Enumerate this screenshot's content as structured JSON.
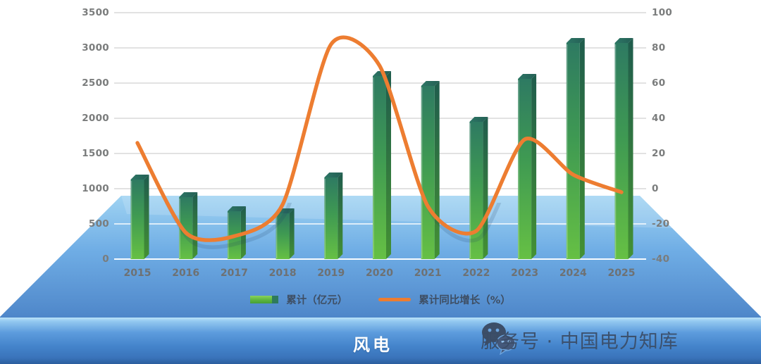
{
  "page": {
    "background": "#ffffff"
  },
  "footer": {
    "title": "风电",
    "brand_text": "服务号 · 中国电力知库",
    "brand_icon": "wechat-icon"
  },
  "legend": [
    {
      "type": "bar",
      "label": "累计（亿元）",
      "color": "#5cb53f"
    },
    {
      "type": "line",
      "label": "累计同比增长（%）",
      "color": "#ed7d31"
    }
  ],
  "chart_data": {
    "type": "combo",
    "title": "风电",
    "categories": [
      "2015",
      "2016",
      "2017",
      "2018",
      "2019",
      "2020",
      "2021",
      "2022",
      "2023",
      "2024",
      "2025"
    ],
    "series": [
      {
        "name": "累计（亿元）",
        "type": "bar",
        "axis": "left",
        "values": [
          1130,
          880,
          680,
          650,
          1160,
          2600,
          2460,
          1950,
          2560,
          3070,
          3070
        ]
      },
      {
        "name": "累计同比增长（%）",
        "type": "line",
        "axis": "right",
        "values": [
          26,
          -25,
          -27,
          -9,
          82,
          70,
          -10,
          -24,
          28,
          8,
          -2
        ]
      }
    ],
    "left_axis": {
      "min": 0,
      "max": 3500,
      "step": 500,
      "ticks": [
        0,
        500,
        1000,
        1500,
        2000,
        2500,
        3000,
        3500
      ]
    },
    "right_axis": {
      "min": -40,
      "max": 100,
      "step": 20,
      "ticks": [
        -40,
        -20,
        0,
        20,
        40,
        60,
        80,
        100
      ]
    },
    "grid": true,
    "legend_position": "bottom"
  },
  "colors": {
    "bar_top": "#2e7a62",
    "bar_mid": "#3f9a52",
    "bar_bottom": "#66c044",
    "bar_side_top": "#1f5c4d",
    "bar_side_bottom": "#449133",
    "bar_topface": "#2d7160",
    "line_orange": "#ed7d31",
    "floor_top": "#9fd3f2",
    "floor_bottom": "#4e86c9",
    "grid_on_white": "#d8d8d8",
    "grid_on_blue": "#ffffff",
    "tick_text": "#7a7c7c",
    "band_text": "#ffffff",
    "brand_text": "#3a4c66"
  }
}
